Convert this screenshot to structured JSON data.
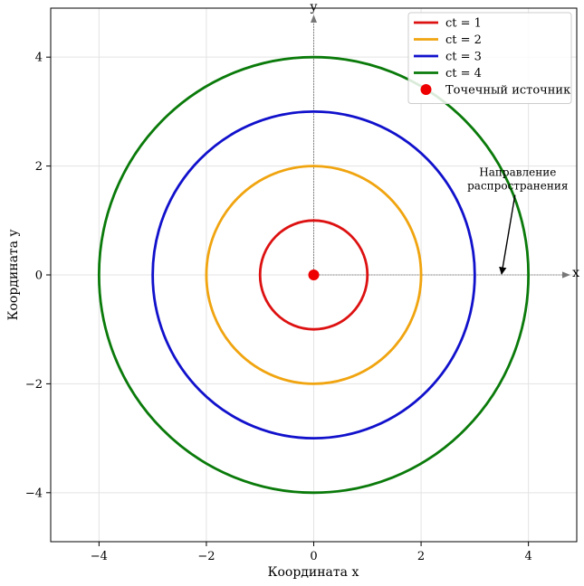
{
  "chart_data": {
    "type": "line",
    "title": "",
    "xlabel": "Координата x",
    "ylabel": "Координата y",
    "xlim": [
      -4.9,
      4.9
    ],
    "ylim": [
      -4.9,
      4.9
    ],
    "xticks": [
      -4,
      -2,
      0,
      2,
      4
    ],
    "yticks": [
      -4,
      -2,
      0,
      2,
      4
    ],
    "xtick_labels": [
      "−4",
      "−2",
      "0",
      "2",
      "4"
    ],
    "ytick_labels": [
      "−4",
      "−2",
      "0",
      "2",
      "4"
    ],
    "grid": true,
    "legend_position": "top-right",
    "series": [
      {
        "name": "ct = 1",
        "shape": "circle",
        "center": [
          0,
          0
        ],
        "radius": 1,
        "color": "#dd1111"
      },
      {
        "name": "ct = 2",
        "shape": "circle",
        "center": [
          0,
          0
        ],
        "radius": 2,
        "color": "#f0a40f"
      },
      {
        "name": "ct = 3",
        "shape": "circle",
        "center": [
          0,
          0
        ],
        "radius": 3,
        "color": "#1111cc"
      },
      {
        "name": "ct = 4",
        "shape": "circle",
        "center": [
          0,
          0
        ],
        "radius": 4,
        "color": "#0a7a0a"
      }
    ],
    "point": {
      "name": "Точечный источник",
      "x": 0,
      "y": 0,
      "color": "#ee0000"
    },
    "axis_arrows": [
      {
        "label": "x",
        "from": [
          0,
          0
        ],
        "to": [
          4.75,
          0
        ]
      },
      {
        "label": "y",
        "from": [
          0,
          0
        ],
        "to": [
          0,
          4.75
        ]
      }
    ],
    "annotation": {
      "lines": [
        "Направление",
        "распространения"
      ],
      "text_at": [
        3.8,
        1.6
      ],
      "arrow_to": [
        3.5,
        0
      ]
    }
  }
}
